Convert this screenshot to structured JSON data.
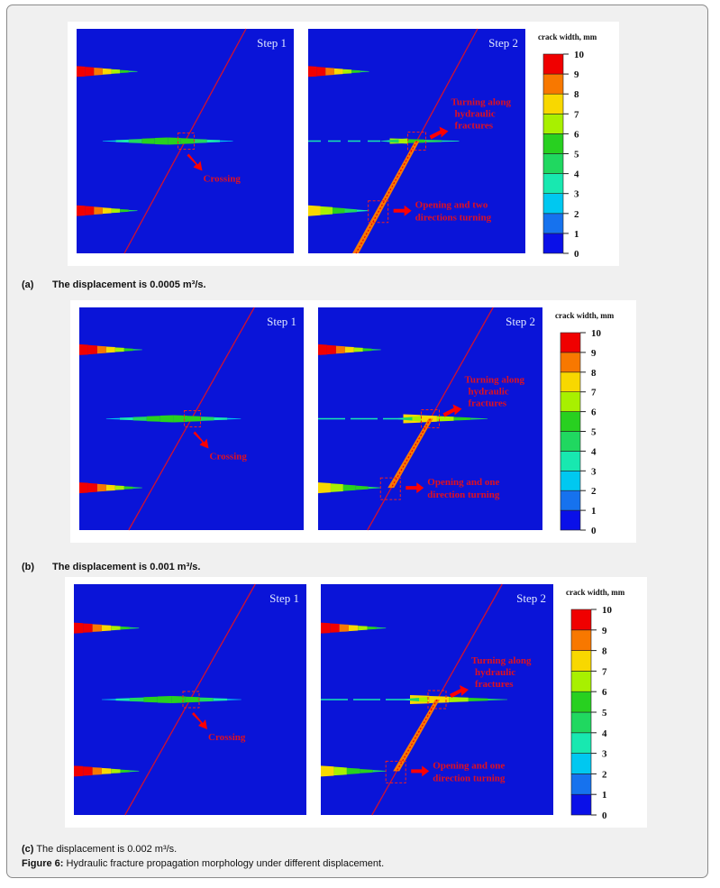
{
  "legend": {
    "title": "crack width, mm",
    "ticks": [
      "0",
      "1",
      "2",
      "3",
      "4",
      "5",
      "6",
      "7",
      "8",
      "9",
      "10"
    ],
    "colors": [
      "#0a10e8",
      "#1672ee",
      "#00c8f0",
      "#18e8b0",
      "#20d860",
      "#28d020",
      "#a8f000",
      "#f8d800",
      "#f87800",
      "#f00000"
    ]
  },
  "background_color": "#0a14d8",
  "panels": [
    {
      "id": "a",
      "step1": "Step 1",
      "step2": "Step 2",
      "crossing": "Crossing",
      "turning": [
        "Turning along",
        "hydraulic",
        "fractures"
      ],
      "opening": [
        "Opening and two",
        "directions turning"
      ],
      "caption_label": "(a)",
      "caption_text": "The displacement is 0.0005 m³/s."
    },
    {
      "id": "b",
      "step1": "Step 1",
      "step2": "Step 2",
      "crossing": "Crossing",
      "turning": [
        "Turning along",
        "hydraulic",
        "fractures"
      ],
      "opening": [
        "Opening and one",
        "direction turning"
      ],
      "caption_label": "(b)",
      "caption_text": "The displacement is 0.001 m³/s."
    },
    {
      "id": "c",
      "step1": "Step 1",
      "step2": "Step 2",
      "crossing": "Crossing",
      "turning": [
        "Turning along",
        "hydraulic",
        "fractures"
      ],
      "opening": [
        "Opening and one",
        "direction turning"
      ],
      "caption_label": "(c)",
      "caption_text": "The displacement is 0.002 m³/s."
    }
  ],
  "figure_caption": {
    "label": "Figure 6:",
    "text": "Hydraulic fracture propagation morphology under different displacement."
  }
}
